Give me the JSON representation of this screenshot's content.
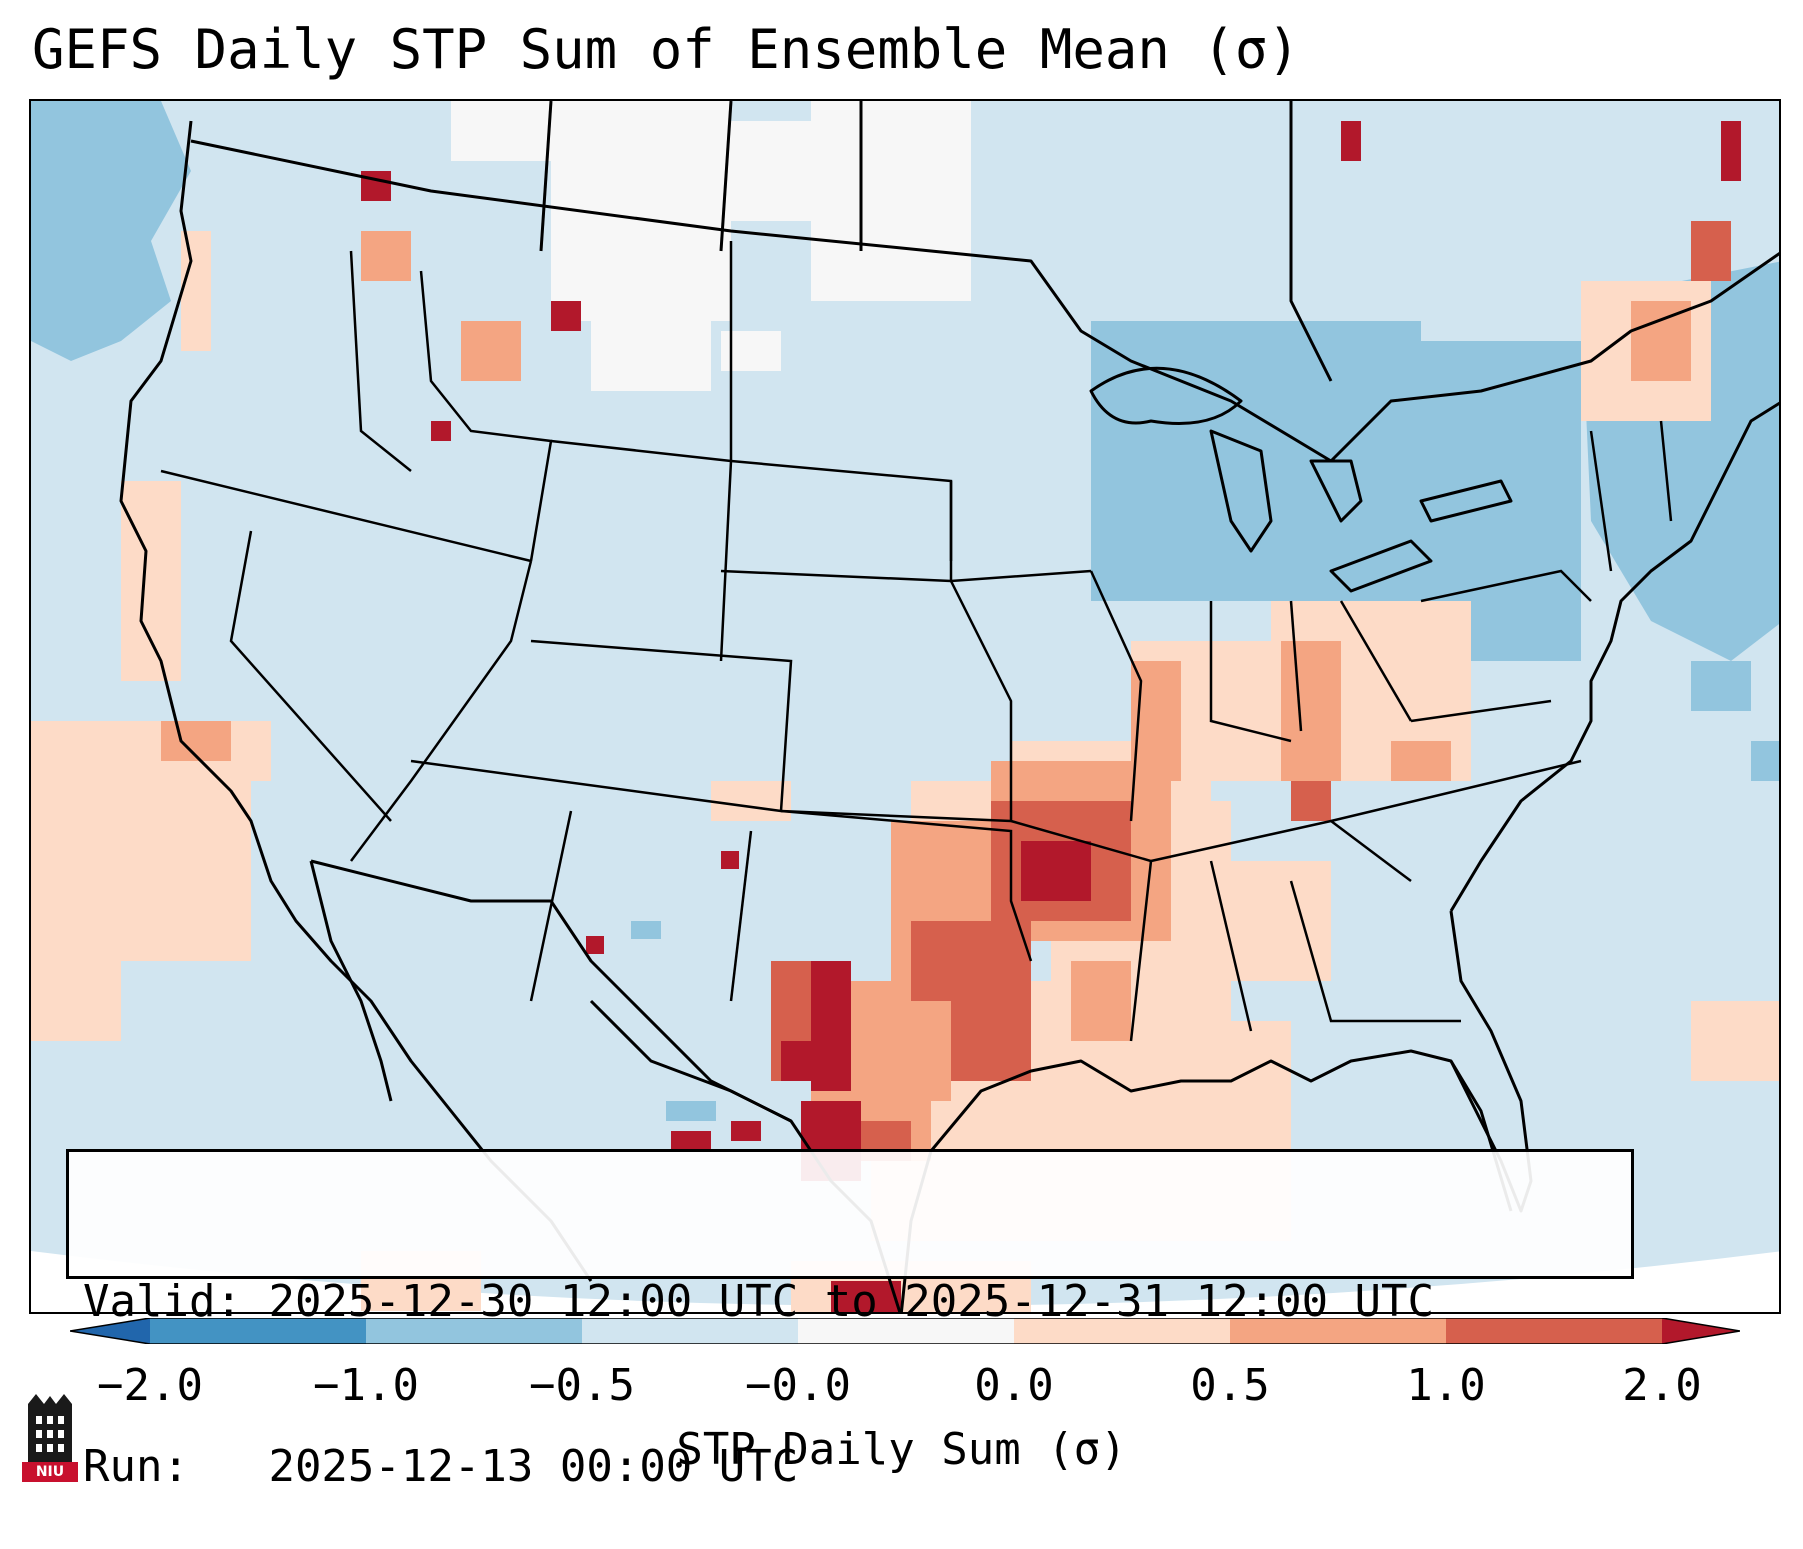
{
  "title": "GEFS Daily STP Sum of Ensemble Mean (σ)",
  "info": {
    "valid_label": "Valid:",
    "valid_value": "2025-12-30 12:00 UTC to 2025-12-31 12:00 UTC",
    "run_label": "Run:",
    "run_value": "2025-12-13 00:00 UTC"
  },
  "colorbar": {
    "label": "STP Daily Sum (σ)",
    "ticks": [
      "−2.0",
      "−1.0",
      "−0.5",
      "−0.0",
      "0.0",
      "0.5",
      "1.0",
      "2.0"
    ],
    "colors": [
      "#2166ac",
      "#4393c3",
      "#92c5de",
      "#d1e5f0",
      "#f7f7f7",
      "#fddbc7",
      "#f4a582",
      "#d6604d",
      "#b2182b"
    ]
  },
  "logo": {
    "text": "NIU"
  }
}
